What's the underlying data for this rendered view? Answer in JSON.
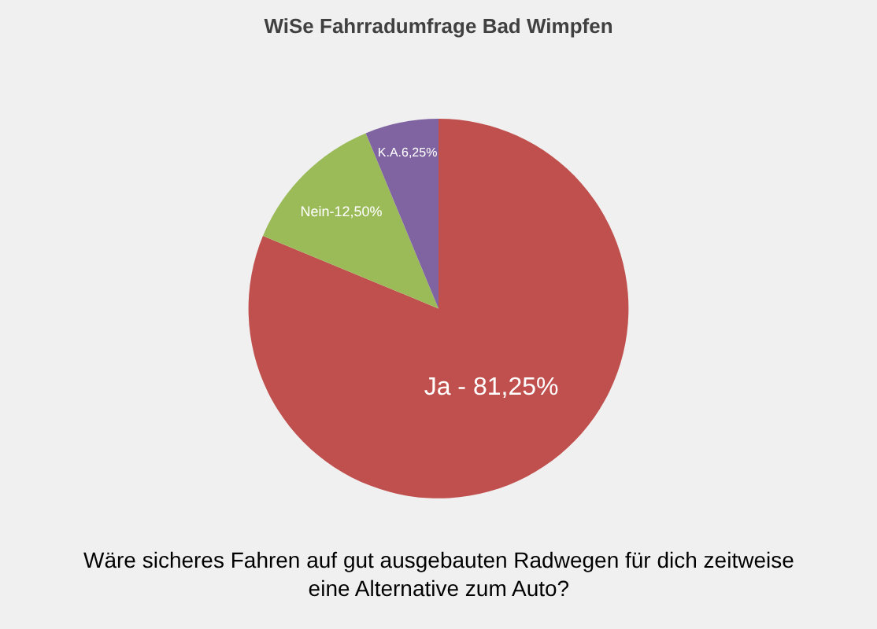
{
  "chart_data": {
    "type": "pie",
    "title": "WiSe Fahrradumfrage Bad Wimpfen",
    "categories": [
      "Ja - 81,25%",
      "Nein-12,50%",
      "K.A.6,25%"
    ],
    "values": [
      81.25,
      12.5,
      6.25
    ],
    "colors": [
      "#c0504d",
      "#9bbb59",
      "#8064a2"
    ],
    "legend": false,
    "annotations": [
      "Wäre sicheres Fahren auf gut ausgebauten Radwegen für dich zeitweise\neine Alternative zum Auto?"
    ]
  }
}
